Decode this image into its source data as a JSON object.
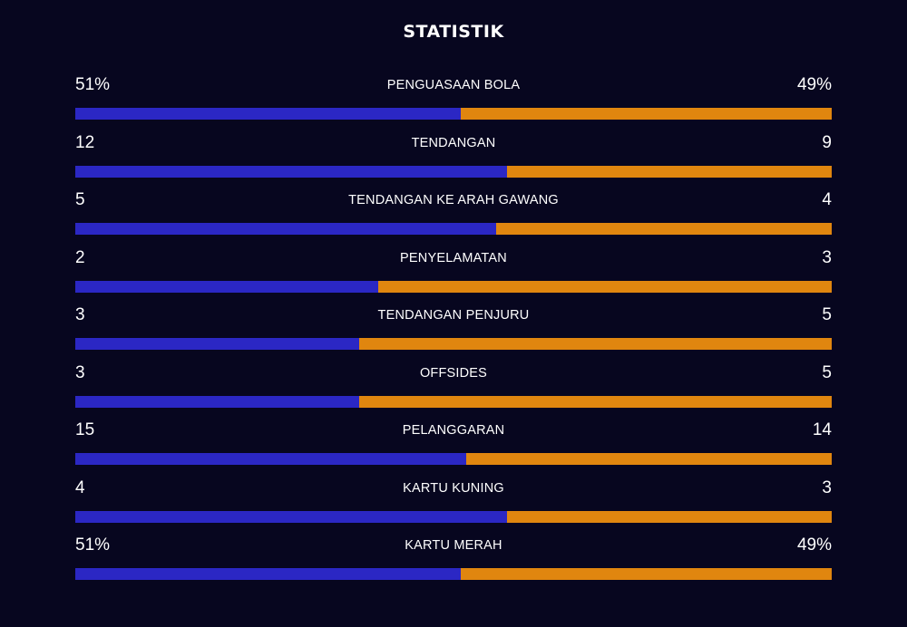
{
  "header": {
    "title": "STATISTIK"
  },
  "colors": {
    "background": "#07061f",
    "home": "#2b27c4",
    "away": "#e0860f"
  },
  "stats": [
    {
      "label": "PENGUASAAN BOLA",
      "home": "51%",
      "away": "49%",
      "home_share": 0.51
    },
    {
      "label": "TENDANGAN",
      "home": "12",
      "away": "9",
      "home_share": 0.571
    },
    {
      "label": "TENDANGAN KE ARAH GAWANG",
      "home": "5",
      "away": "4",
      "home_share": 0.556
    },
    {
      "label": "PENYELAMATAN",
      "home": "2",
      "away": "3",
      "home_share": 0.4
    },
    {
      "label": "TENDANGAN PENJURU",
      "home": "3",
      "away": "5",
      "home_share": 0.375
    },
    {
      "label": "OFFSIDES",
      "home": "3",
      "away": "5",
      "home_share": 0.375
    },
    {
      "label": "PELANGGARAN",
      "home": "15",
      "away": "14",
      "home_share": 0.517
    },
    {
      "label": "KARTU KUNING",
      "home": "4",
      "away": "3",
      "home_share": 0.571
    },
    {
      "label": "KARTU MERAH",
      "home": "51%",
      "away": "49%",
      "home_share": 0.51
    }
  ]
}
